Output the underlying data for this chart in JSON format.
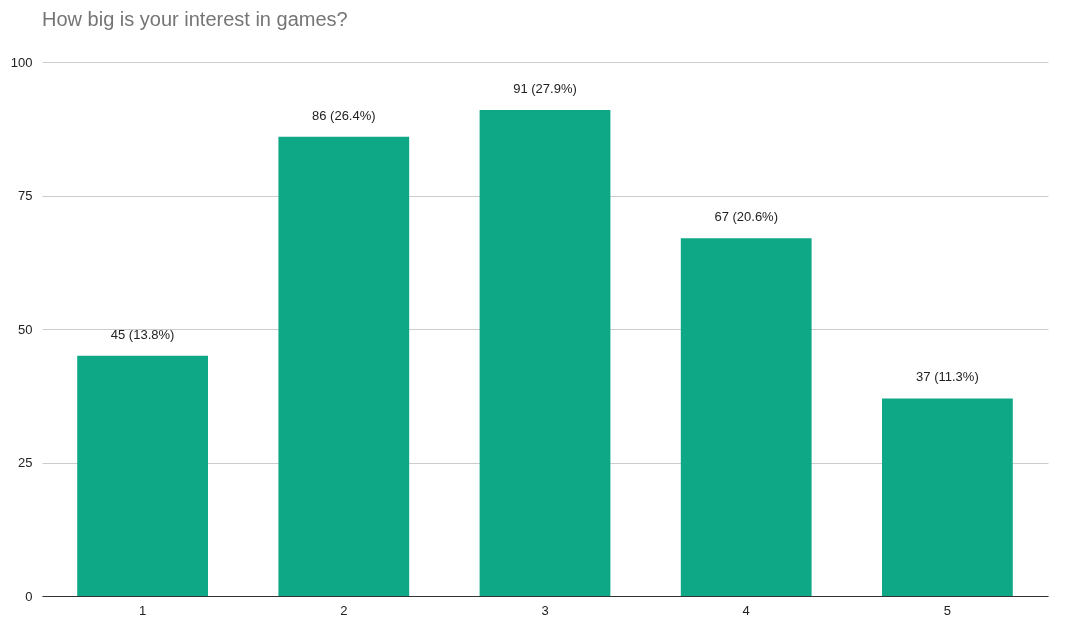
{
  "chart_data": {
    "type": "bar",
    "title": "How big is your interest in games?",
    "categories": [
      "1",
      "2",
      "3",
      "4",
      "5"
    ],
    "values": [
      45,
      86,
      91,
      67,
      37
    ],
    "value_labels": [
      "45 (13.8%)",
      "86 (26.4%)",
      "91 (27.9%)",
      "67 (20.6%)",
      "37 (11.3%)"
    ],
    "color": "#0ea886",
    "ylim": [
      0,
      100
    ],
    "yticks": [
      0,
      25,
      50,
      75,
      100
    ],
    "grid": "y"
  }
}
